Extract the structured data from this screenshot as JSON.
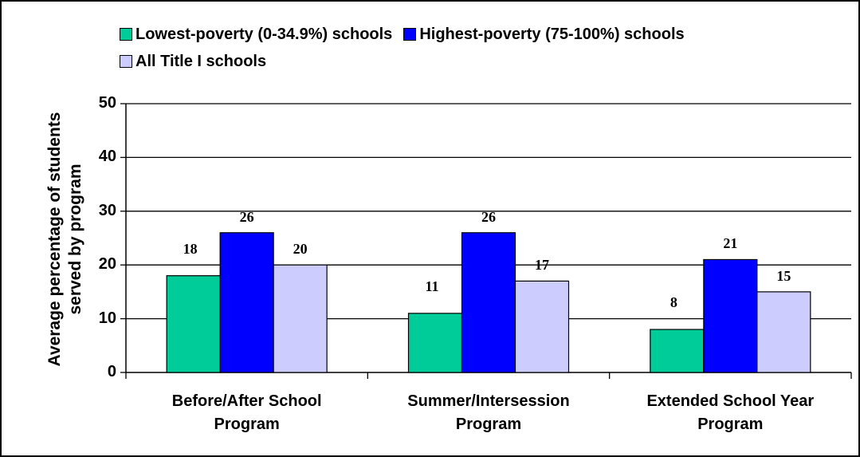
{
  "chart_data": {
    "type": "bar",
    "title": "",
    "xlabel": "",
    "ylabel_lines": [
      "Average percentage of students",
      "served by program"
    ],
    "categories": [
      [
        "Before/After School",
        "Program"
      ],
      [
        "Summer/Intersession",
        "Program"
      ],
      [
        "Extended School Year",
        "Program"
      ]
    ],
    "series": [
      {
        "name": "Lowest-poverty (0-34.9%) schools",
        "color": "#00CC99",
        "values": [
          18,
          11,
          8
        ]
      },
      {
        "name": "Highest-poverty (75-100%) schools",
        "color": "#0000FF",
        "values": [
          26,
          26,
          21
        ]
      },
      {
        "name": "All Title I schools",
        "color": "#CCCCFF",
        "values": [
          20,
          17,
          15
        ]
      }
    ],
    "ylim": [
      0,
      50
    ],
    "yticks": [
      "0",
      "10",
      "20",
      "30",
      "40",
      "50"
    ],
    "grid": true,
    "legend_placement": "top"
  }
}
